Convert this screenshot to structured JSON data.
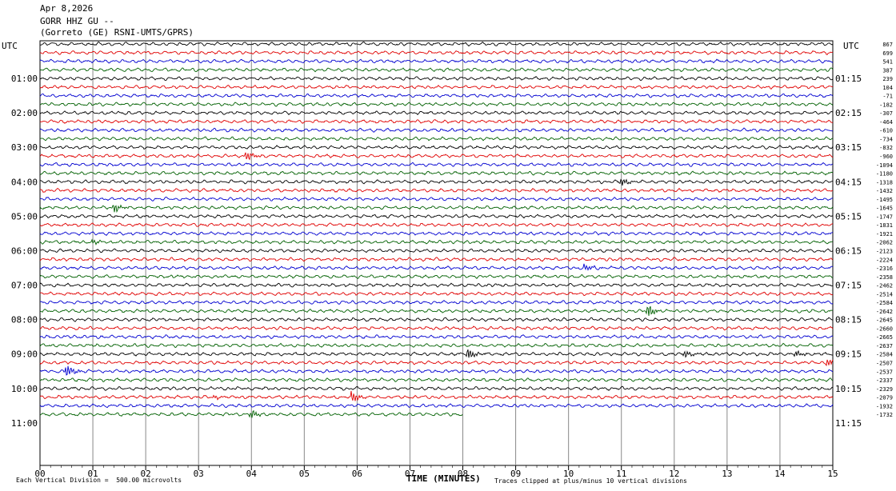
{
  "header": {
    "date": "Apr 8,2026",
    "station": "GORR HHZ GU --",
    "network": "(Gorreto (GE) RSNI-UMTS/GPRS)"
  },
  "chart_data": {
    "type": "line",
    "title": "Apr 8,2026 GORR HHZ GU --",
    "xlabel": "TIME (MINUTES)",
    "ylabel": "UTC",
    "xlim": [
      0,
      15
    ],
    "x_ticks": [
      "00",
      "01",
      "02",
      "03",
      "04",
      "05",
      "06",
      "07",
      "08",
      "09",
      "10",
      "11",
      "12",
      "13",
      "14",
      "15"
    ],
    "left_utc_label": "UTC",
    "right_utc_label": "UTC",
    "left_hour_labels": [
      "01:00",
      "02:00",
      "03:00",
      "04:00",
      "05:00",
      "06:00",
      "07:00",
      "08:00",
      "09:00",
      "10:00",
      "11:00"
    ],
    "right_hour_labels": [
      "01:15",
      "02:15",
      "03:15",
      "04:15",
      "05:15",
      "06:15",
      "07:15",
      "08:15",
      "09:15",
      "10:15",
      "11:15"
    ],
    "trace_colors": [
      "#000000",
      "#e00000",
      "#0000d0",
      "#006000"
    ],
    "trace_offsets": [
      "867",
      "699",
      "541",
      "387",
      "239",
      "104",
      "-71",
      "-182",
      "-307",
      "-464",
      "-610",
      "-734",
      "-832",
      "-960",
      "-1094",
      "-1180",
      "-1318",
      "-1432",
      "-1495",
      "-1645",
      "-1747",
      "-1831",
      "-1921",
      "-2062",
      "-2123",
      "-2224",
      "-2316",
      "-2358",
      "-2462",
      "-2514",
      "-2584",
      "-2642",
      "-2645",
      "-2660",
      "-2665",
      "-2637",
      "-2584",
      "-2507",
      "-2537",
      "-2337",
      "-2329",
      "-2079",
      "-1932",
      "-1732"
    ],
    "last_trace_end_minute": 8.0,
    "events": [
      {
        "trace": 13,
        "minute": 3.9,
        "amp": 6
      },
      {
        "trace": 16,
        "minute": 11.0,
        "amp": 5
      },
      {
        "trace": 19,
        "minute": 1.4,
        "amp": 6
      },
      {
        "trace": 23,
        "minute": 1.0,
        "amp": 3
      },
      {
        "trace": 26,
        "minute": 10.3,
        "amp": 4
      },
      {
        "trace": 31,
        "minute": 11.5,
        "amp": 8
      },
      {
        "trace": 36,
        "minute": 8.1,
        "amp": 7
      },
      {
        "trace": 36,
        "minute": 12.2,
        "amp": 4
      },
      {
        "trace": 36,
        "minute": 14.3,
        "amp": 4
      },
      {
        "trace": 37,
        "minute": 14.9,
        "amp": 5
      },
      {
        "trace": 38,
        "minute": 0.5,
        "amp": 8
      },
      {
        "trace": 41,
        "minute": 5.9,
        "amp": 7
      },
      {
        "trace": 41,
        "minute": 3.3,
        "amp": 2
      },
      {
        "trace": 43,
        "minute": 4.0,
        "amp": 5
      }
    ],
    "grid": true
  },
  "footer": {
    "scale_note": "Each Vertical Division =  500.00 microvolts",
    "clip_note": "Traces clipped at plus/minus 10 vertical divisions"
  }
}
